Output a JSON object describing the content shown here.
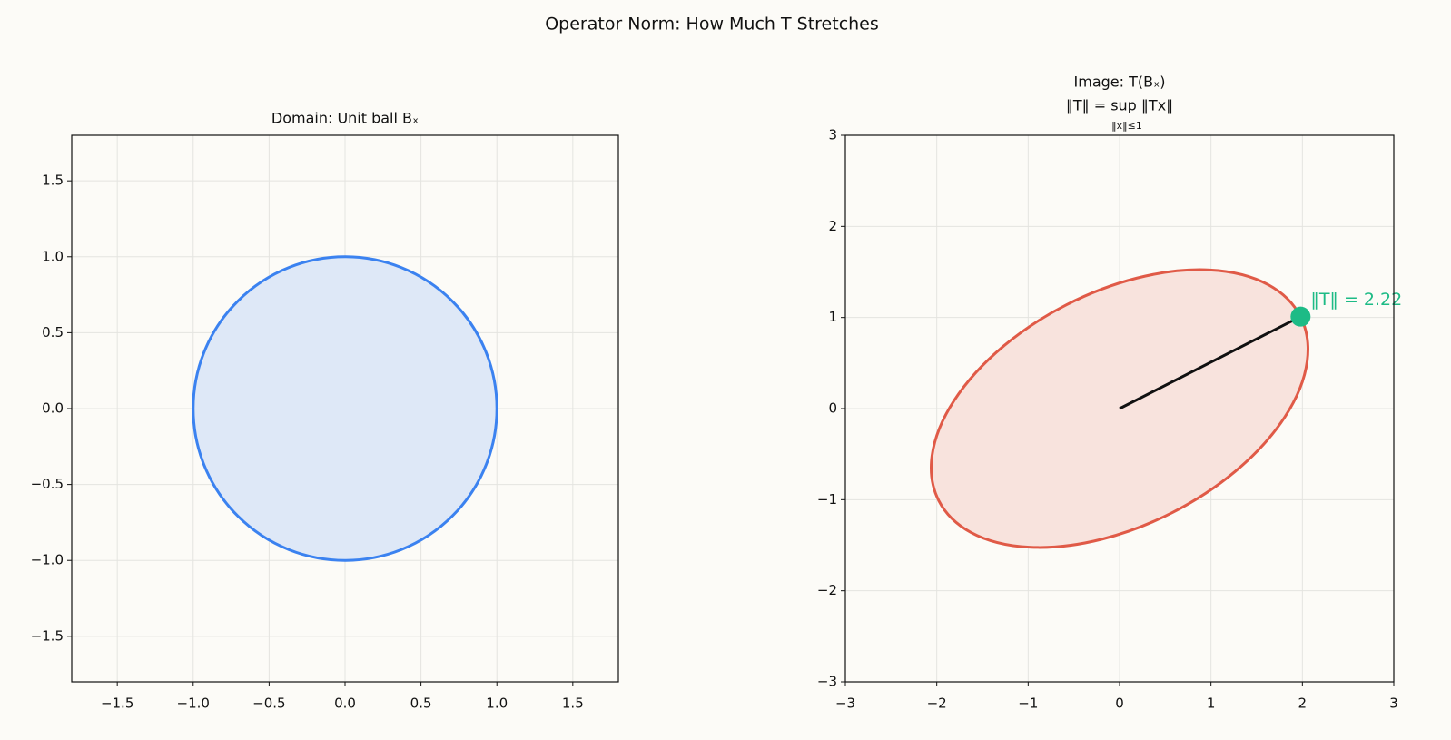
{
  "title": "Operator Norm: How Much T Stretches",
  "chart_data": [
    {
      "type": "region",
      "title": [
        "Domain: Unit ball Bₓ"
      ],
      "shape": {
        "center": [
          0,
          0
        ],
        "radii": [
          1,
          1
        ],
        "angle": 0
      },
      "stroke": "#3b82f0",
      "fill": "#dee8f7",
      "xlim": [
        -1.8,
        1.8
      ],
      "ylim": [
        -1.8,
        1.8
      ],
      "xticks": [
        {
          "value": -1.5,
          "label": "−1.5"
        },
        {
          "value": -1.0,
          "label": "−1.0"
        },
        {
          "value": -0.5,
          "label": "−0.5"
        },
        {
          "value": 0,
          "label": "0.0"
        },
        0.5,
        {
          "value": 1.0,
          "label": "1.0"
        },
        1.5
      ],
      "yticks": [
        {
          "value": -1.5,
          "label": "−1.5"
        },
        {
          "value": -1.0,
          "label": "−1.0"
        },
        {
          "value": -0.5,
          "label": "−0.5"
        },
        {
          "value": 0,
          "label": "0.0"
        },
        0.5,
        {
          "value": 1.0,
          "label": "1.0"
        },
        1.5
      ],
      "grid": true
    },
    {
      "type": "region",
      "title": [
        "Image: T(Bₓ)",
        "‖T‖ = sup ‖Tx‖"
      ],
      "title_subscript": "‖x‖≤1",
      "shape": {
        "center": [
          0,
          0
        ],
        "radii": [
          2.22,
          1.28
        ],
        "angle": 27
      },
      "stroke": "#e05a47",
      "fill": "#f8e3dd",
      "vector": {
        "x": 1.98,
        "y": 1.01,
        "color": "#111111",
        "point_color": "#1dbb86"
      },
      "annotation": "‖T‖ = 2.22",
      "xlim": [
        -3,
        3
      ],
      "ylim": [
        -3,
        3
      ],
      "xticks": [
        {
          "value": -3,
          "label": "−3"
        },
        {
          "value": -2,
          "label": "−2"
        },
        {
          "value": -1,
          "label": "−1"
        },
        0,
        1,
        2,
        3
      ],
      "yticks": [
        {
          "value": -3,
          "label": "−3"
        },
        {
          "value": -2,
          "label": "−2"
        },
        {
          "value": -1,
          "label": "−1"
        },
        0,
        1,
        2,
        3
      ],
      "grid": true
    }
  ]
}
